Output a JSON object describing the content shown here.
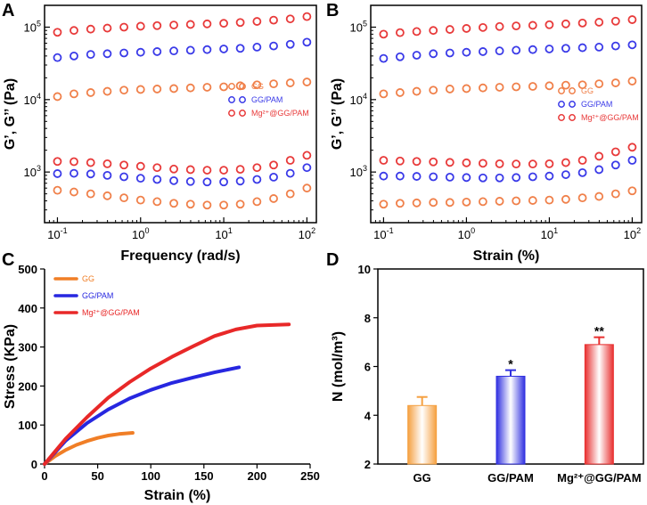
{
  "chart_data": [
    {
      "panel": "A",
      "type": "scatter",
      "xlabel": "Frequency (rad/s)",
      "ylabel": "G’, G’’ (Pa)",
      "xscale": "log",
      "yscale": "log",
      "xlim": [
        0.07,
        130
      ],
      "ylim": [
        200,
        200000
      ],
      "xticks": [
        {
          "v": 0.1,
          "b": "10",
          "e": "-1"
        },
        {
          "v": 1,
          "b": "10",
          "e": "0"
        },
        {
          "v": 10,
          "b": "10",
          "e": "1"
        },
        {
          "v": 100,
          "b": "10",
          "e": "2"
        }
      ],
      "yticks": [
        {
          "v": 1000,
          "b": "10",
          "e": "3"
        },
        {
          "v": 10000,
          "b": "10",
          "e": "4"
        },
        {
          "v": 100000,
          "b": "10",
          "e": "5"
        }
      ],
      "x": [
        0.1,
        0.158,
        0.251,
        0.398,
        0.631,
        1,
        1.58,
        2.51,
        3.98,
        6.31,
        10,
        15.8,
        25.1,
        39.8,
        63.1,
        100
      ],
      "series": [
        {
          "name": "GG",
          "role": "G'",
          "color": "#F0804A",
          "values": [
            11000,
            12000,
            12500,
            13000,
            13500,
            13800,
            14000,
            14200,
            14500,
            14800,
            15000,
            15500,
            16000,
            16500,
            17000,
            17500
          ]
        },
        {
          "name": "GG",
          "role": "G''",
          "color": "#F0804A",
          "values": [
            560,
            530,
            500,
            470,
            440,
            410,
            390,
            370,
            360,
            350,
            350,
            360,
            390,
            430,
            500,
            600
          ]
        },
        {
          "name": "GG/PAM",
          "role": "G'",
          "color": "#3A3AE8",
          "values": [
            38000,
            40000,
            42000,
            43000,
            44000,
            45000,
            46000,
            47000,
            48000,
            49000,
            50000,
            51000,
            53000,
            55000,
            58000,
            62000
          ]
        },
        {
          "name": "GG/PAM",
          "role": "G''",
          "color": "#3A3AE8",
          "values": [
            950,
            960,
            940,
            900,
            860,
            820,
            790,
            760,
            740,
            730,
            730,
            750,
            790,
            850,
            960,
            1150
          ]
        },
        {
          "name": "Mg2+@GG/PAM",
          "role": "G'",
          "color": "#E83A3A",
          "values": [
            85000,
            90000,
            94000,
            97000,
            100000,
            103000,
            105000,
            107000,
            109000,
            111000,
            113000,
            116000,
            120000,
            125000,
            130000,
            140000
          ]
        },
        {
          "name": "Mg2+@GG/PAM",
          "role": "G''",
          "color": "#E83A3A",
          "values": [
            1400,
            1390,
            1350,
            1300,
            1250,
            1200,
            1150,
            1100,
            1080,
            1060,
            1060,
            1090,
            1150,
            1250,
            1450,
            1700
          ]
        }
      ],
      "legend": [
        {
          "label": "GG",
          "color": "#F0804A"
        },
        {
          "label": "GG/PAM",
          "color": "#3A3AE8"
        },
        {
          "label": "Mg²⁺@GG/PAM",
          "color": "#E83A3A"
        }
      ],
      "legend_position": "center-right"
    },
    {
      "panel": "B",
      "type": "scatter",
      "xlabel": "Strain (%)",
      "ylabel": "G’, G’’ (Pa)",
      "xscale": "log",
      "yscale": "log",
      "xlim": [
        0.07,
        130
      ],
      "ylim": [
        200,
        200000
      ],
      "xticks": [
        {
          "v": 0.1,
          "b": "10",
          "e": "-1"
        },
        {
          "v": 1,
          "b": "10",
          "e": "0"
        },
        {
          "v": 10,
          "b": "10",
          "e": "1"
        },
        {
          "v": 100,
          "b": "10",
          "e": "2"
        }
      ],
      "yticks": [
        {
          "v": 1000,
          "b": "10",
          "e": "3"
        },
        {
          "v": 10000,
          "b": "10",
          "e": "4"
        },
        {
          "v": 100000,
          "b": "10",
          "e": "5"
        }
      ],
      "x": [
        0.1,
        0.158,
        0.251,
        0.398,
        0.631,
        1,
        1.58,
        2.51,
        3.98,
        6.31,
        10,
        15.8,
        25.1,
        39.8,
        63.1,
        100
      ],
      "series": [
        {
          "name": "GG",
          "role": "G'",
          "color": "#F0804A",
          "values": [
            12000,
            12500,
            13000,
            13500,
            14000,
            14200,
            14500,
            14800,
            15000,
            15200,
            15500,
            15800,
            16000,
            16500,
            17000,
            18000
          ]
        },
        {
          "name": "GG",
          "role": "G''",
          "color": "#F0804A",
          "values": [
            360,
            370,
            375,
            380,
            380,
            385,
            390,
            395,
            400,
            405,
            410,
            420,
            440,
            460,
            500,
            550
          ]
        },
        {
          "name": "GG/PAM",
          "role": "G'",
          "color": "#3A3AE8",
          "values": [
            37000,
            39000,
            41000,
            43000,
            44000,
            45000,
            46000,
            47000,
            48000,
            49000,
            50000,
            51000,
            52000,
            53000,
            55000,
            57000
          ]
        },
        {
          "name": "GG/PAM",
          "role": "G''",
          "color": "#3A3AE8",
          "values": [
            880,
            880,
            870,
            860,
            850,
            840,
            830,
            830,
            840,
            860,
            880,
            920,
            980,
            1080,
            1250,
            1450
          ]
        },
        {
          "name": "Mg2+@GG/PAM",
          "role": "G'",
          "color": "#E83A3A",
          "values": [
            80000,
            84000,
            87000,
            90000,
            93000,
            96000,
            99000,
            102000,
            104000,
            106000,
            108000,
            111000,
            114000,
            117000,
            121000,
            127000
          ]
        },
        {
          "name": "Mg2+@GG/PAM",
          "role": "G''",
          "color": "#E83A3A",
          "values": [
            1450,
            1420,
            1400,
            1380,
            1360,
            1340,
            1320,
            1300,
            1290,
            1290,
            1300,
            1350,
            1450,
            1650,
            1900,
            2200
          ]
        }
      ],
      "legend": [
        {
          "label": "GG",
          "color": "#F0804A"
        },
        {
          "label": "GG/PAM",
          "color": "#3A3AE8"
        },
        {
          "label": "Mg²⁺@GG/PAM",
          "color": "#E83A3A"
        }
      ],
      "legend_position": "center-right"
    },
    {
      "panel": "C",
      "type": "line",
      "xlabel": "Strain (%)",
      "ylabel": "Stress (KPa)",
      "xlim": [
        0,
        250
      ],
      "ylim": [
        0,
        500
      ],
      "xticks": [
        0,
        50,
        100,
        150,
        200,
        250
      ],
      "yticks": [
        0,
        100,
        200,
        300,
        400,
        500
      ],
      "series": [
        {
          "name": "GG",
          "color": "#F07E26",
          "x": [
            0,
            10,
            20,
            30,
            40,
            50,
            60,
            70,
            83
          ],
          "y": [
            0,
            20,
            36,
            49,
            59,
            67,
            73,
            77,
            80
          ]
        },
        {
          "name": "GG/PAM",
          "color": "#2727E0",
          "x": [
            0,
            20,
            40,
            60,
            80,
            100,
            120,
            140,
            160,
            183
          ],
          "y": [
            0,
            60,
            105,
            140,
            168,
            190,
            208,
            222,
            235,
            248
          ]
        },
        {
          "name": "Mg2+@GG/PAM",
          "color": "#E82828",
          "x": [
            0,
            20,
            40,
            60,
            80,
            100,
            120,
            140,
            160,
            180,
            200,
            230
          ],
          "y": [
            0,
            65,
            120,
            170,
            210,
            245,
            275,
            302,
            328,
            345,
            355,
            358
          ]
        }
      ],
      "legend": [
        {
          "label": "GG",
          "color": "#F07E26"
        },
        {
          "label": "GG/PAM",
          "color": "#2727E0"
        },
        {
          "label": "Mg²⁺@GG/PAM",
          "color": "#E82828"
        }
      ],
      "legend_position": "top-left"
    },
    {
      "panel": "D",
      "type": "bar",
      "xlabel": "",
      "ylabel": "N (mol/m³)",
      "ylim": [
        2,
        10
      ],
      "yticks": [
        2,
        4,
        6,
        8,
        10
      ],
      "categories": [
        "GG",
        "GG/PAM",
        "Mg²⁺@GG/PAM"
      ],
      "values": [
        4.4,
        5.6,
        6.9
      ],
      "errors": [
        0.35,
        0.25,
        0.3
      ],
      "significance": [
        "",
        "*",
        "**"
      ],
      "colors": [
        "#F5A040",
        "#3030E0",
        "#E83030"
      ]
    }
  ]
}
